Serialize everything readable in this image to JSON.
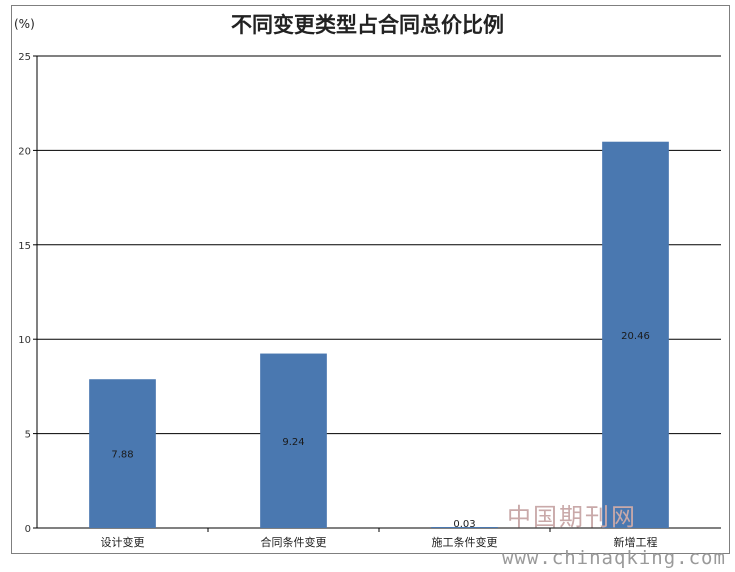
{
  "chart_data": {
    "type": "bar",
    "title": "不同变更类型占合同总价比例",
    "unit_label": "(%)",
    "categories": [
      "设计变更",
      "合同条件变更",
      "施工条件变更",
      "新增工程"
    ],
    "values": [
      7.88,
      9.24,
      0.03,
      20.46
    ],
    "value_labels": [
      "7.88",
      "9.24",
      "0.03",
      "20.46"
    ],
    "ylim": [
      0,
      25
    ],
    "yticks": [
      0,
      5,
      10,
      15,
      20,
      25
    ],
    "grid": true,
    "bar_color": "#4a78b0"
  },
  "watermark": {
    "cn": "中国期刊网",
    "url": "www.chinaqking.com"
  }
}
